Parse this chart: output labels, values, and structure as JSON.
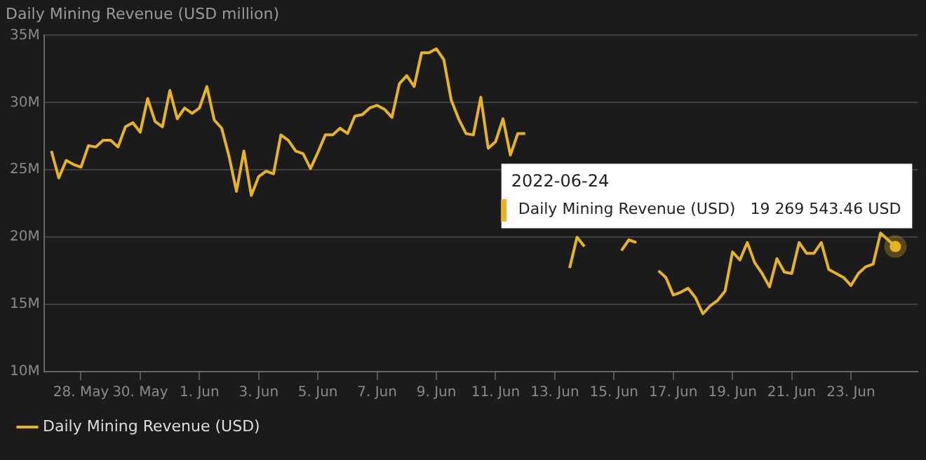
{
  "chart_data": {
    "type": "line",
    "title": "Daily Mining Revenue (USD million)",
    "x": [
      "2022-05-27T00:00",
      "2022-05-27T06:00",
      "2022-05-27T12:00",
      "2022-05-27T18:00",
      "2022-05-28T00:00",
      "2022-05-28T06:00",
      "2022-05-28T12:00",
      "2022-05-28T18:00",
      "2022-05-29T00:00",
      "2022-05-29T06:00",
      "2022-05-29T12:00",
      "2022-05-29T18:00",
      "2022-05-30T00:00",
      "2022-05-30T06:00",
      "2022-05-30T12:00",
      "2022-05-30T18:00",
      "2022-05-31T00:00",
      "2022-05-31T06:00",
      "2022-05-31T12:00",
      "2022-05-31T18:00",
      "2022-06-01T00:00",
      "2022-06-01T06:00",
      "2022-06-01T12:00",
      "2022-06-01T18:00",
      "2022-06-02T00:00",
      "2022-06-02T06:00",
      "2022-06-02T12:00",
      "2022-06-02T18:00",
      "2022-06-03T00:00",
      "2022-06-03T06:00",
      "2022-06-03T12:00",
      "2022-06-03T18:00",
      "2022-06-04T00:00",
      "2022-06-04T06:00",
      "2022-06-04T12:00",
      "2022-06-04T18:00",
      "2022-06-05T00:00",
      "2022-06-05T06:00",
      "2022-06-05T12:00",
      "2022-06-05T18:00",
      "2022-06-06T00:00",
      "2022-06-06T06:00",
      "2022-06-06T12:00",
      "2022-06-06T18:00",
      "2022-06-07T00:00",
      "2022-06-07T06:00",
      "2022-06-07T12:00",
      "2022-06-07T18:00",
      "2022-06-08T00:00",
      "2022-06-08T06:00",
      "2022-06-08T12:00",
      "2022-06-08T18:00",
      "2022-06-09T00:00",
      "2022-06-09T06:00",
      "2022-06-09T12:00",
      "2022-06-09T18:00",
      "2022-06-10T00:00",
      "2022-06-10T06:00",
      "2022-06-10T12:00",
      "2022-06-10T18:00",
      "2022-06-11T00:00",
      "2022-06-11T06:00",
      "2022-06-11T12:00",
      "2022-06-11T18:00",
      "2022-06-12T00:00",
      "2022-06-12T06:00",
      "2022-06-12T12:00",
      "2022-06-12T18:00",
      "2022-06-13T00:00",
      "2022-06-13T06:00",
      "2022-06-13T12:00",
      "2022-06-13T18:00",
      "2022-06-14T00:00",
      "2022-06-14T06:00",
      "2022-06-14T12:00",
      "2022-06-14T18:00",
      "2022-06-15T00:00",
      "2022-06-15T06:00",
      "2022-06-15T12:00",
      "2022-06-15T18:00",
      "2022-06-16T00:00",
      "2022-06-16T06:00",
      "2022-06-16T12:00",
      "2022-06-16T18:00",
      "2022-06-17T00:00",
      "2022-06-17T06:00",
      "2022-06-17T12:00",
      "2022-06-17T18:00",
      "2022-06-18T00:00",
      "2022-06-18T06:00",
      "2022-06-18T12:00",
      "2022-06-18T18:00",
      "2022-06-19T00:00",
      "2022-06-19T06:00",
      "2022-06-19T12:00",
      "2022-06-19T18:00",
      "2022-06-20T00:00",
      "2022-06-20T06:00",
      "2022-06-20T12:00",
      "2022-06-20T18:00",
      "2022-06-21T00:00",
      "2022-06-21T06:00",
      "2022-06-21T12:00",
      "2022-06-21T18:00",
      "2022-06-22T00:00",
      "2022-06-22T06:00",
      "2022-06-22T12:00",
      "2022-06-22T18:00",
      "2022-06-23T00:00",
      "2022-06-23T06:00",
      "2022-06-23T12:00",
      "2022-06-23T18:00",
      "2022-06-24T00:00",
      "2022-06-24T06:00",
      "2022-06-24T12:00"
    ],
    "series": [
      {
        "name": "Daily Mining Revenue (USD)",
        "color": "#e6b325",
        "values": [
          26.4,
          24.4,
          25.7,
          25.4,
          25.2,
          26.8,
          26.7,
          27.2,
          27.2,
          26.7,
          28.2,
          28.5,
          27.8,
          30.3,
          28.6,
          28.2,
          30.9,
          28.8,
          29.6,
          29.2,
          29.6,
          31.2,
          28.7,
          28.1,
          26.0,
          23.4,
          26.4,
          23.1,
          24.5,
          24.9,
          24.7,
          27.6,
          27.2,
          26.4,
          26.2,
          25.1,
          26.3,
          27.6,
          27.6,
          28.1,
          27.7,
          29.0,
          29.1,
          29.6,
          29.8,
          29.5,
          28.9,
          31.4,
          32.0,
          31.2,
          33.7,
          33.7,
          34.0,
          33.2,
          30.2,
          28.8,
          27.7,
          27.6,
          30.4,
          26.6,
          27.1,
          28.8,
          26.1,
          27.7,
          27.7,
          null,
          null,
          null,
          null,
          null,
          17.7,
          20.0,
          19.3,
          null,
          null,
          null,
          null,
          19.0,
          19.8,
          19.6,
          null,
          null,
          17.5,
          17.0,
          15.7,
          15.9,
          16.2,
          15.5,
          14.3,
          14.9,
          15.3,
          16.0,
          18.9,
          18.3,
          19.6,
          18.1,
          17.3,
          16.3,
          18.4,
          17.4,
          17.3,
          19.6,
          18.8,
          18.8,
          19.6,
          17.6,
          17.3,
          17.0,
          16.4,
          17.3,
          17.8,
          18.0,
          20.3,
          19.8,
          19.3
        ]
      }
    ],
    "xlim": [
      "2022-05-26T18:00",
      "2022-06-25T06:00"
    ],
    "xticks": [
      {
        "value": "2022-05-28",
        "label": "28. May"
      },
      {
        "value": "2022-05-30",
        "label": "30. May"
      },
      {
        "value": "2022-06-01",
        "label": "1. Jun"
      },
      {
        "value": "2022-06-03",
        "label": "3. Jun"
      },
      {
        "value": "2022-06-05",
        "label": "5. Jun"
      },
      {
        "value": "2022-06-07",
        "label": "7. Jun"
      },
      {
        "value": "2022-06-09",
        "label": "9. Jun"
      },
      {
        "value": "2022-06-11",
        "label": "11. Jun"
      },
      {
        "value": "2022-06-13",
        "label": "13. Jun"
      },
      {
        "value": "2022-06-15",
        "label": "15. Jun"
      },
      {
        "value": "2022-06-17",
        "label": "17. Jun"
      },
      {
        "value": "2022-06-19",
        "label": "19. Jun"
      },
      {
        "value": "2022-06-21",
        "label": "21. Jun"
      },
      {
        "value": "2022-06-23",
        "label": "23. Jun"
      }
    ],
    "ylim": [
      10,
      35
    ],
    "yticks": [
      {
        "value": 10,
        "label": "10M"
      },
      {
        "value": 15,
        "label": "15M"
      },
      {
        "value": 20,
        "label": "20M"
      },
      {
        "value": 25,
        "label": "25M"
      },
      {
        "value": 30,
        "label": "30M"
      },
      {
        "value": 35,
        "label": "35M"
      }
    ],
    "grid": "y",
    "legend": "bottom left",
    "annotations": [
      "2022-06-24",
      "Daily Mining Revenue (USD)   19 269 543.46 USD"
    ]
  }
}
